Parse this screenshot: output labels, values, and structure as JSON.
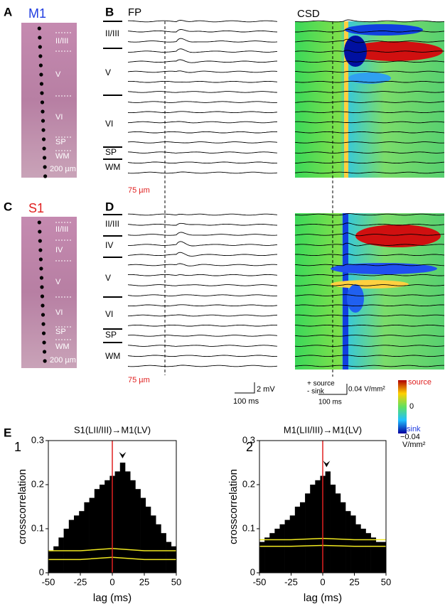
{
  "panels": {
    "A": {
      "letter": "A",
      "area": "M1",
      "layers": [
        "II/III",
        "V",
        "VI",
        "SP",
        "WM"
      ],
      "scale": "200 µm"
    },
    "B": {
      "letter": "B",
      "fp_label": "FP",
      "csd_label": "CSD",
      "layers": [
        "II/III",
        "V",
        "VI",
        "SP",
        "WM"
      ],
      "scale": "75 µm"
    },
    "C": {
      "letter": "C",
      "area": "S1",
      "layers": [
        "II/III",
        "IV",
        "V",
        "VI",
        "SP",
        "WM"
      ],
      "scale": "200 µm"
    },
    "D": {
      "letter": "D",
      "layers": [
        "II/III",
        "IV",
        "V",
        "VI",
        "SP",
        "WM"
      ],
      "scale": "75 µm"
    },
    "scalebars": {
      "fp_v": "2 mV",
      "fp_t": "100 ms",
      "csd_source": "+ source",
      "csd_sink": "- sink",
      "csd_v": "0.04 V/mm²",
      "csd_t": "100 ms"
    },
    "colorbar": {
      "top": "source",
      "mid": "0",
      "bottom_label": "sink",
      "bottom_value": "−0.04",
      "unit": "V/mm²"
    },
    "E": {
      "letter": "E"
    }
  },
  "chart_data": [
    {
      "type": "histogram",
      "panel": "1",
      "title": "S1(LII/III)→M1(LV)",
      "xlabel": "lag (ms)",
      "ylabel": "crosscorrelation",
      "color": "#000000",
      "bins": [
        -50,
        -46,
        -42,
        -38,
        -34,
        -30,
        -26,
        -22,
        -18,
        -14,
        -10,
        -6,
        -2,
        2,
        6,
        10,
        14,
        18,
        22,
        26,
        30,
        34,
        38,
        42,
        46,
        50
      ],
      "values": [
        0.05,
        0.06,
        0.08,
        0.1,
        0.12,
        0.13,
        0.14,
        0.16,
        0.17,
        0.19,
        0.2,
        0.21,
        0.22,
        0.23,
        0.25,
        0.23,
        0.21,
        0.19,
        0.17,
        0.15,
        0.13,
        0.11,
        0.09,
        0.07,
        0.06
      ],
      "xlim": [
        -50,
        50
      ],
      "xticks": [
        -50,
        -25,
        0,
        25,
        50
      ],
      "ylim": [
        0,
        0.3
      ],
      "yticks": [
        0,
        0.1,
        0.2,
        0.3
      ],
      "zero_line": {
        "x": 0,
        "color": "#e02020"
      },
      "peak_lag": 8,
      "bounds": {
        "color": "#f0e820",
        "x": [
          -50,
          -25,
          0,
          25,
          50
        ],
        "upper": [
          0.05,
          0.05,
          0.055,
          0.05,
          0.05
        ],
        "lower": [
          0.03,
          0.03,
          0.035,
          0.03,
          0.03
        ]
      }
    },
    {
      "type": "histogram",
      "panel": "2",
      "title": "M1(LII/III)→M1(LV)",
      "xlabel": "lag (ms)",
      "ylabel": "crosscorrelation",
      "color": "#000000",
      "bins": [
        -50,
        -46,
        -42,
        -38,
        -34,
        -30,
        -26,
        -22,
        -18,
        -14,
        -10,
        -6,
        -2,
        2,
        6,
        10,
        14,
        18,
        22,
        26,
        30,
        34,
        38,
        42,
        46,
        50
      ],
      "values": [
        0.07,
        0.08,
        0.09,
        0.1,
        0.11,
        0.12,
        0.13,
        0.15,
        0.16,
        0.18,
        0.2,
        0.21,
        0.22,
        0.23,
        0.2,
        0.18,
        0.16,
        0.14,
        0.13,
        0.11,
        0.1,
        0.09,
        0.08,
        0.07,
        0.07
      ],
      "xlim": [
        -50,
        50
      ],
      "xticks": [
        -50,
        -25,
        0,
        25,
        50
      ],
      "ylim": [
        0,
        0.3
      ],
      "yticks": [
        0,
        0.1,
        0.2,
        0.3
      ],
      "zero_line": {
        "x": 0,
        "color": "#e02020"
      },
      "peak_lag": 3,
      "bounds": {
        "color": "#f0e820",
        "x": [
          -50,
          -25,
          0,
          25,
          50
        ],
        "upper": [
          0.075,
          0.075,
          0.078,
          0.075,
          0.075
        ],
        "lower": [
          0.06,
          0.06,
          0.062,
          0.06,
          0.06
        ]
      }
    }
  ]
}
